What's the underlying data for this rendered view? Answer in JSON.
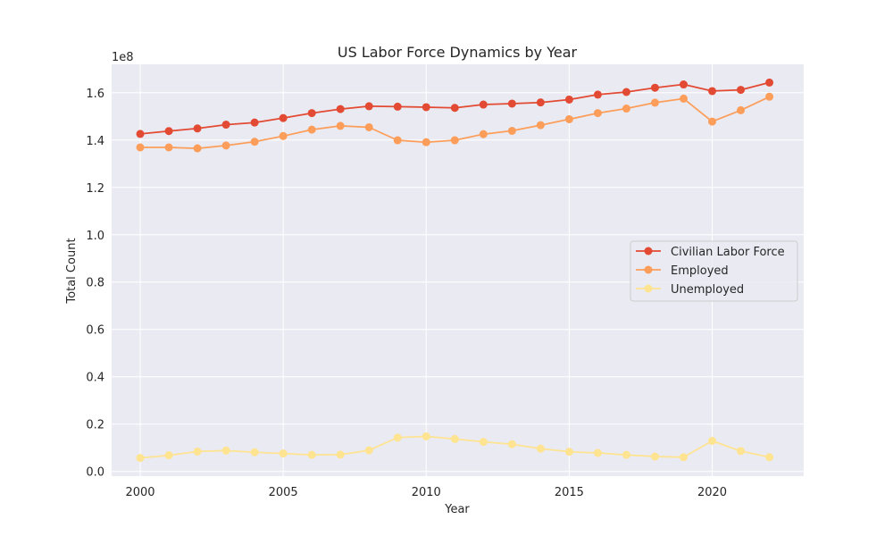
{
  "chart_data": {
    "type": "line",
    "title": "US Labor Force Dynamics by Year",
    "xlabel": "Year",
    "ylabel": "Total Count",
    "y_offset_label": "1e8",
    "xlim": [
      1999,
      2023.2
    ],
    "ylim": [
      -2000000,
      172000000
    ],
    "x_ticks": [
      2000,
      2005,
      2010,
      2015,
      2020
    ],
    "x_tick_labels": [
      "2000",
      "2005",
      "2010",
      "2015",
      "2020"
    ],
    "y_ticks": [
      0,
      20000000,
      40000000,
      60000000,
      80000000,
      100000000,
      120000000,
      140000000,
      160000000
    ],
    "y_tick_labels": [
      "0.0",
      "0.2",
      "0.4",
      "0.6",
      "0.8",
      "1.0",
      "1.2",
      "1.4",
      "1.6"
    ],
    "grid": true,
    "legend_position": "center-right",
    "x": [
      2000,
      2001,
      2002,
      2003,
      2004,
      2005,
      2006,
      2007,
      2008,
      2009,
      2010,
      2011,
      2012,
      2013,
      2014,
      2015,
      2016,
      2017,
      2018,
      2019,
      2020,
      2021,
      2022
    ],
    "series": [
      {
        "name": "Civilian Labor Force",
        "color": "#e34a33",
        "values": [
          142600000,
          143800000,
          144900000,
          146500000,
          147400000,
          149300000,
          151400000,
          153100000,
          154300000,
          154100000,
          153900000,
          153600000,
          155000000,
          155400000,
          155900000,
          157100000,
          159200000,
          160300000,
          162100000,
          163500000,
          160700000,
          161200000,
          164300000
        ]
      },
      {
        "name": "Employed",
        "color": "#fc9e5a",
        "values": [
          136900000,
          136900000,
          136500000,
          137700000,
          139300000,
          141700000,
          144400000,
          146000000,
          145400000,
          139900000,
          139100000,
          139900000,
          142500000,
          143900000,
          146300000,
          148800000,
          151400000,
          153300000,
          155800000,
          157500000,
          147800000,
          152600000,
          158300000
        ]
      },
      {
        "name": "Unemployed",
        "color": "#fee391",
        "values": [
          5700000,
          6800000,
          8400000,
          8800000,
          8100000,
          7600000,
          7000000,
          7100000,
          8900000,
          14300000,
          14800000,
          13700000,
          12500000,
          11500000,
          9600000,
          8300000,
          7800000,
          7000000,
          6300000,
          6000000,
          12900000,
          8600000,
          6000000
        ]
      }
    ]
  }
}
